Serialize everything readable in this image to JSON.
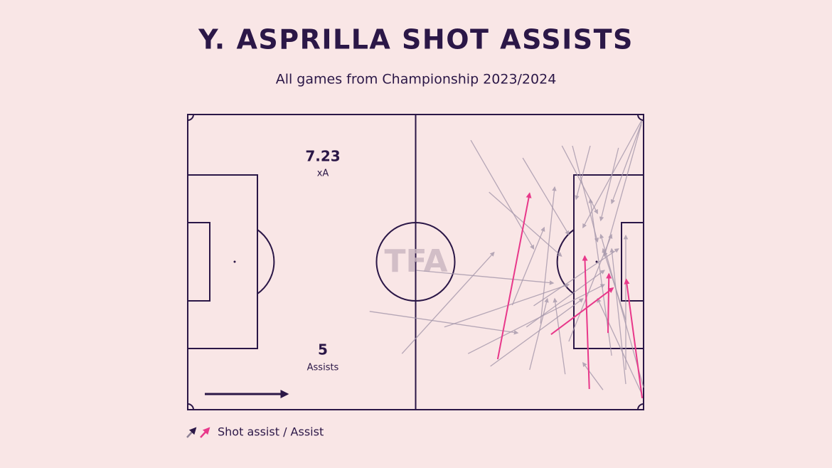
{
  "chart_data": {
    "type": "pitch-arrows",
    "title": "Y. ASPRILLA SHOT ASSISTS",
    "subtitle": "All games from Championship 2023/2024",
    "stats": [
      {
        "value": "7.23",
        "label": "xA"
      },
      {
        "value": "5",
        "label": "Assists"
      }
    ],
    "watermark": "TFA",
    "legend": "Shot assist / Assist",
    "xlim": [
      0,
      100
    ],
    "ylim": [
      100,
      0
    ],
    "shot_assists": {
      "color": "#a597ab",
      "arrows": [
        [
          62.1,
          8.7,
          75.9,
          45.5
        ],
        [
          39.9,
          66.7,
          72.4,
          74.0
        ],
        [
          47.0,
          81.0,
          67.2,
          46.7
        ],
        [
          50.2,
          52.8,
          80.2,
          57.1
        ],
        [
          56.3,
          72.0,
          83.6,
          57.6
        ],
        [
          73.5,
          14.7,
          83.6,
          40.7
        ],
        [
          66.1,
          26.3,
          82.0,
          48.0
        ],
        [
          61.5,
          81.0,
          91.4,
          57.6
        ],
        [
          66.4,
          85.3,
          86.7,
          62.4
        ],
        [
          75.0,
          86.5,
          78.9,
          62.4
        ],
        [
          84.4,
          10.6,
          89.9,
          43.1
        ],
        [
          99.5,
          2.2,
          86.7,
          38.3
        ],
        [
          99.5,
          3.4,
          91.4,
          48.0
        ],
        [
          99.7,
          2.2,
          93.0,
          30.1
        ],
        [
          88.3,
          10.6,
          85.2,
          28.7
        ],
        [
          96.1,
          69.6,
          91.1,
          45.5
        ],
        [
          91.1,
          93.3,
          86.7,
          84.1
        ],
        [
          96.1,
          91.3,
          93.0,
          45.5
        ],
        [
          99.7,
          94.9,
          89.9,
          62.4
        ],
        [
          77.4,
          70.8,
          80.5,
          24.6
        ],
        [
          71.2,
          64.6,
          78.2,
          38.3
        ],
        [
          100,
          92.5,
          90.6,
          40.7
        ],
        [
          96.1,
          86.5,
          96.1,
          41.0
        ],
        [
          82.8,
          88.0,
          80.5,
          62.4
        ],
        [
          74.3,
          72.0,
          91.4,
          52.8
        ],
        [
          94.5,
          11.3,
          90.6,
          35.9
        ],
        [
          82.1,
          10.6,
          89.9,
          33.5
        ],
        [
          83.6,
          76.9,
          93.0,
          40.7
        ],
        [
          93.0,
          81.7,
          88.3,
          28.7
        ],
        [
          75.9,
          64.8,
          94.5,
          45.5
        ]
      ]
    },
    "assists": {
      "color": "#e8388a",
      "arrows": [
        [
          68.0,
          82.9,
          75.0,
          26.7
        ],
        [
          88.1,
          93.0,
          87.1,
          48.0
        ],
        [
          79.7,
          74.5,
          93.3,
          58.8
        ],
        [
          92.2,
          74.0,
          92.4,
          54.0
        ],
        [
          99.7,
          96.1,
          96.2,
          55.9
        ]
      ]
    }
  }
}
